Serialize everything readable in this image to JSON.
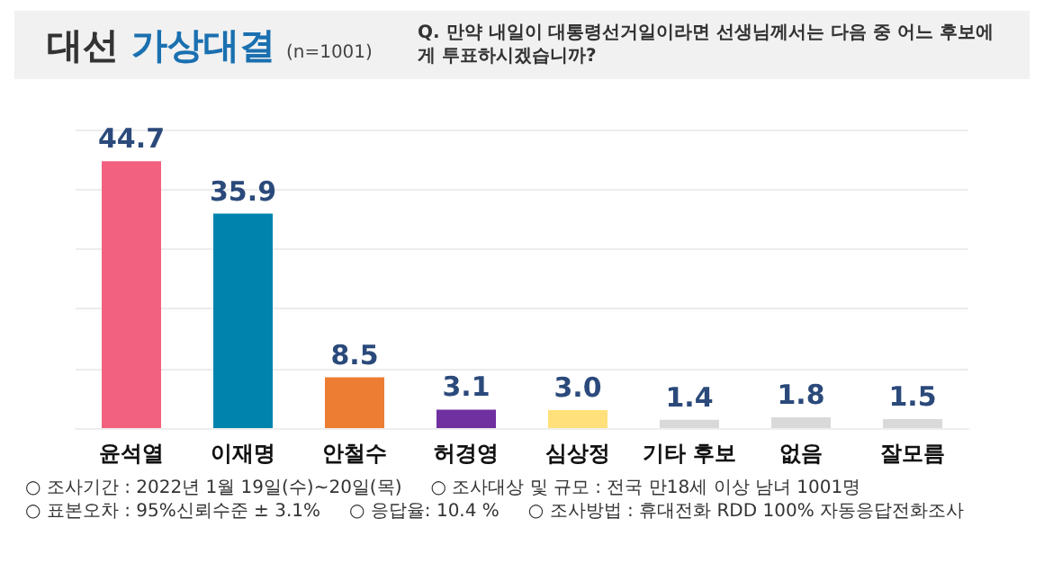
{
  "chart_data": {
    "type": "bar",
    "title": "대선 가상대결",
    "subtitle": "(n=1001)",
    "annotations": [
      "Q. 만약 내일이 대통령선거일이라면 선생님께서는 다음 중 어느 후보에게 투표하시겠습니까?",
      "○ 조사기간 : 2022년 1월 19일(수)~20일(목)",
      "○ 조사대상 및 규모 : 전국 만18세 이상 남녀 1001명",
      "○ 표본오차 : 95%신뢰수준 ± 3.1%",
      "○ 응답율: 10.4 %",
      "○ 조사방법 : 휴대전화 RDD 100% 자동응답전화조사"
    ],
    "categories": [
      "윤석열",
      "이재명",
      "안철수",
      "허경영",
      "심상정",
      "기타 후보",
      "없음",
      "잘모름"
    ],
    "values": [
      44.7,
      35.9,
      8.5,
      3.1,
      3.0,
      1.4,
      1.8,
      1.5
    ],
    "colors": [
      "#f2617f",
      "#0083ad",
      "#ec7d33",
      "#7030a0",
      "#ffe07a",
      "#d9d9d9",
      "#d9d9d9",
      "#d9d9d9"
    ],
    "ylim": [
      0,
      50
    ],
    "yticks": [
      {
        "value": 0,
        "label": null
      },
      {
        "value": 10,
        "label": null
      },
      {
        "value": 20,
        "label": null
      },
      {
        "value": 30,
        "label": null
      },
      {
        "value": 40,
        "label": null
      },
      {
        "value": 50,
        "label": null
      }
    ],
    "value_labels": [
      "44.7",
      "35.9",
      "8.5",
      "3.1",
      "3.0",
      "1.4",
      "1.8",
      "1.5"
    ],
    "grid": "y"
  }
}
